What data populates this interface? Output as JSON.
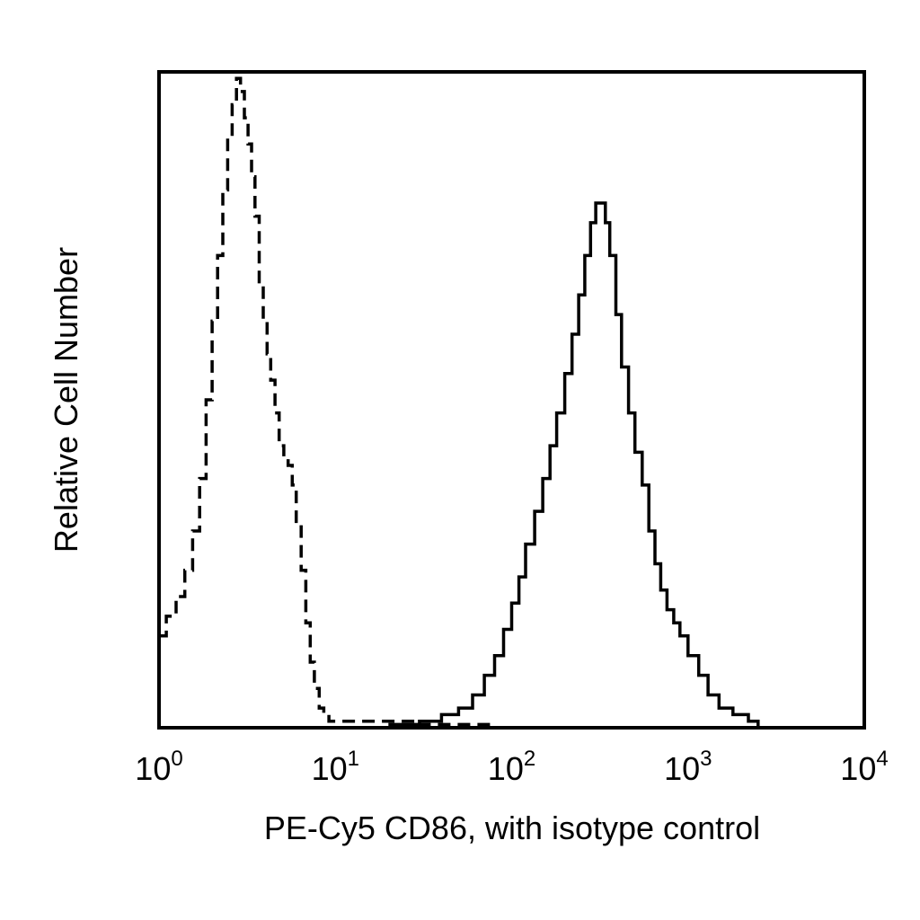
{
  "chart_data": {
    "type": "line",
    "title": "",
    "xlabel": "PE-Cy5 CD86, with isotype control",
    "ylabel": "Relative Cell Number",
    "x_scale": "log",
    "xlim": [
      1,
      10000
    ],
    "ylim": [
      0,
      100
    ],
    "grid": false,
    "x_ticks": [
      {
        "base": "10",
        "exp": "0",
        "value": 1
      },
      {
        "base": "10",
        "exp": "1",
        "value": 10
      },
      {
        "base": "10",
        "exp": "2",
        "value": 100
      },
      {
        "base": "10",
        "exp": "3",
        "value": 1000
      },
      {
        "base": "10",
        "exp": "4",
        "value": 10000
      }
    ],
    "series": [
      {
        "style": "dashed",
        "color": "#000000",
        "x": [
          1.0,
          1.1,
          1.25,
          1.4,
          1.55,
          1.7,
          1.85,
          2.0,
          2.15,
          2.3,
          2.45,
          2.6,
          2.75,
          2.9,
          3.05,
          3.2,
          3.35,
          3.5,
          3.7,
          3.9,
          4.1,
          4.3,
          4.55,
          4.8,
          5.1,
          5.4,
          5.7,
          6.0,
          6.4,
          6.8,
          7.2,
          7.6,
          8.1,
          8.6,
          9.2,
          10.0,
          12.0,
          15.0,
          20.0,
          30.0,
          50.0,
          80.0,
          100.0
        ],
        "y": [
          14,
          17,
          20,
          24,
          30,
          38,
          50,
          62,
          72,
          82,
          90,
          95,
          99,
          97,
          93,
          89,
          84,
          78,
          68,
          62,
          57,
          53,
          48,
          43,
          41,
          40,
          37,
          31,
          24,
          16,
          10,
          6,
          3,
          2,
          1,
          1,
          1,
          1,
          1,
          0.5,
          0.5,
          0,
          0
        ]
      },
      {
        "style": "solid",
        "color": "#000000",
        "x": [
          20.0,
          30.0,
          40.0,
          50.0,
          60.0,
          70.0,
          80.0,
          90.0,
          100.0,
          110.0,
          120.0,
          135.0,
          150.0,
          165.0,
          180.0,
          200.0,
          220.0,
          240.0,
          260.0,
          280.0,
          300.0,
          320.0,
          340.0,
          360.0,
          390.0,
          420.0,
          460.0,
          500.0,
          550.0,
          600.0,
          650.0,
          700.0,
          760.0,
          830.0,
          900.0,
          1000.0,
          1150.0,
          1300.0,
          1500.0,
          1800.0,
          2200.0,
          2500.0
        ],
        "y": [
          0.5,
          1,
          2,
          3,
          5,
          8,
          11,
          15,
          19,
          23,
          28,
          33,
          38,
          43,
          48,
          54,
          60,
          66,
          72,
          77,
          80,
          80,
          77,
          72,
          63,
          55,
          48,
          42,
          37,
          30,
          25,
          21,
          18,
          16,
          14,
          11,
          8,
          5,
          3,
          2,
          1,
          0
        ]
      }
    ]
  }
}
